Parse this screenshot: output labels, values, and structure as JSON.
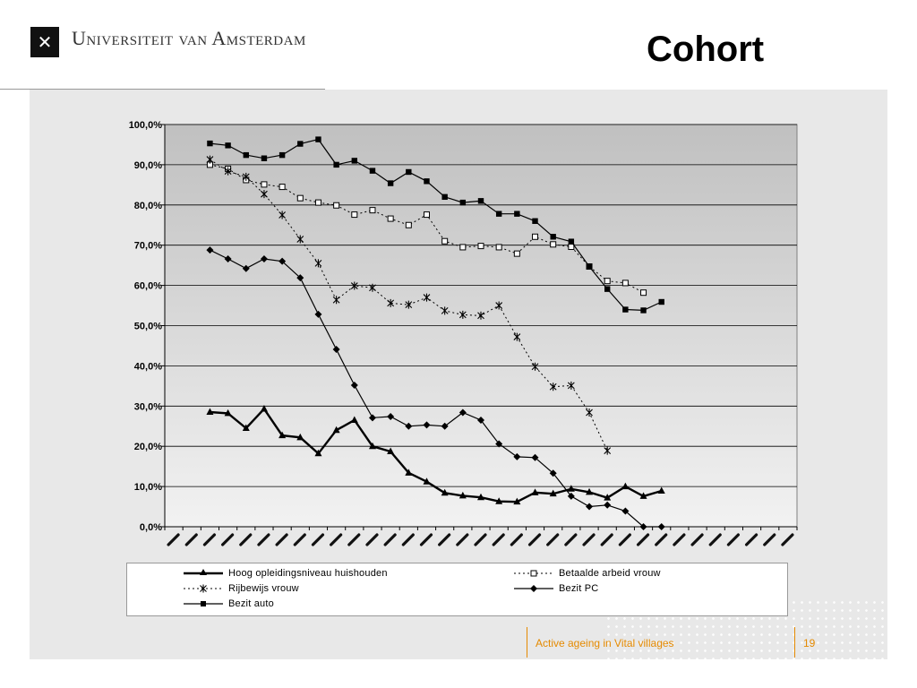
{
  "header": {
    "university": "Universiteit van Amsterdam",
    "title": "Cohort",
    "logo_icon": "uva-logo-icon"
  },
  "footer": {
    "caption": "Active ageing in Vital villages",
    "page": "19",
    "accent_color": "#e58a00"
  },
  "chart_data": {
    "type": "line",
    "title": "",
    "xlabel": "",
    "ylabel": "",
    "ylim": [
      0,
      100
    ],
    "y_ticks": [
      "0,0%",
      "10,0%",
      "20,0%",
      "30,0%",
      "40,0%",
      "50,0%",
      "60,0%",
      "70,0%",
      "80,0%",
      "90,0%",
      "100,0%"
    ],
    "x_count": 35,
    "x_tick_labels_legible": false,
    "grid": true,
    "legend_position": "bottom",
    "series": [
      {
        "name": "Hoog opleidingsniveau huishouden",
        "marker": "triangle",
        "style": "solid-thick",
        "start": 2,
        "values": [
          28.5,
          28.2,
          24.5,
          29.3,
          22.7,
          22.2,
          18.2,
          24.0,
          26.5,
          20.0,
          18.7,
          13.4,
          11.2,
          8.4,
          7.7,
          7.3,
          6.3,
          6.2,
          8.5,
          8.2,
          9.4,
          8.6,
          7.2,
          10.0,
          7.6,
          8.9
        ]
      },
      {
        "name": "Betaalde arbeid vrouw",
        "marker": "square-open",
        "style": "dotted",
        "start": 2,
        "values": [
          90.0,
          89.0,
          86.2,
          85.1,
          84.5,
          81.7,
          80.6,
          79.9,
          77.6,
          78.7,
          76.6,
          75.0,
          77.6,
          71.0,
          69.5,
          69.8,
          69.5,
          67.9,
          72.1,
          70.2,
          69.6,
          64.7,
          61.1,
          60.6,
          58.2
        ]
      },
      {
        "name": "Rijbewijs vrouw",
        "marker": "star",
        "style": "dotted",
        "start": 2,
        "values": [
          91.3,
          88.4,
          87.0,
          82.7,
          77.5,
          71.5,
          65.5,
          56.4,
          59.9,
          59.4,
          55.6,
          55.2,
          57.0,
          53.7,
          52.7,
          52.5,
          55.0,
          47.2,
          39.8,
          34.8,
          35.1,
          28.4,
          18.9
        ]
      },
      {
        "name": "Bezit PC",
        "marker": "diamond",
        "style": "solid",
        "start": 2,
        "values": [
          68.8,
          66.6,
          64.2,
          66.6,
          66.0,
          61.9,
          52.8,
          44.1,
          35.2,
          27.1,
          27.4,
          25.0,
          25.3,
          25.0,
          28.4,
          26.5,
          20.6,
          17.4,
          17.2,
          13.3,
          7.6,
          5.0,
          5.4,
          3.9,
          0.0,
          0.0
        ]
      },
      {
        "name": "Bezit auto",
        "marker": "square-filled",
        "style": "solid",
        "start": 2,
        "values": [
          95.3,
          94.8,
          92.4,
          91.6,
          92.4,
          95.2,
          96.3,
          90.0,
          91.0,
          88.5,
          85.4,
          88.2,
          85.9,
          82.0,
          80.6,
          81.0,
          77.8,
          77.8,
          76.0,
          72.1,
          70.9,
          64.7,
          59.1,
          54.0,
          53.8,
          55.9
        ]
      }
    ],
    "colors": {
      "plot_bg_top": "#c0c0c0",
      "plot_bg_bottom": "#f2f2f2",
      "line": "#000000",
      "grid": "#000000"
    }
  },
  "legend": {
    "items": [
      {
        "label": "Hoog opleidingsniveau huishouden",
        "series": 0
      },
      {
        "label": "Betaalde arbeid vrouw",
        "series": 1
      },
      {
        "label": "Rijbewijs vrouw",
        "series": 2
      },
      {
        "label": "Bezit PC",
        "series": 3
      },
      {
        "label": "Bezit auto",
        "series": 4
      }
    ]
  }
}
